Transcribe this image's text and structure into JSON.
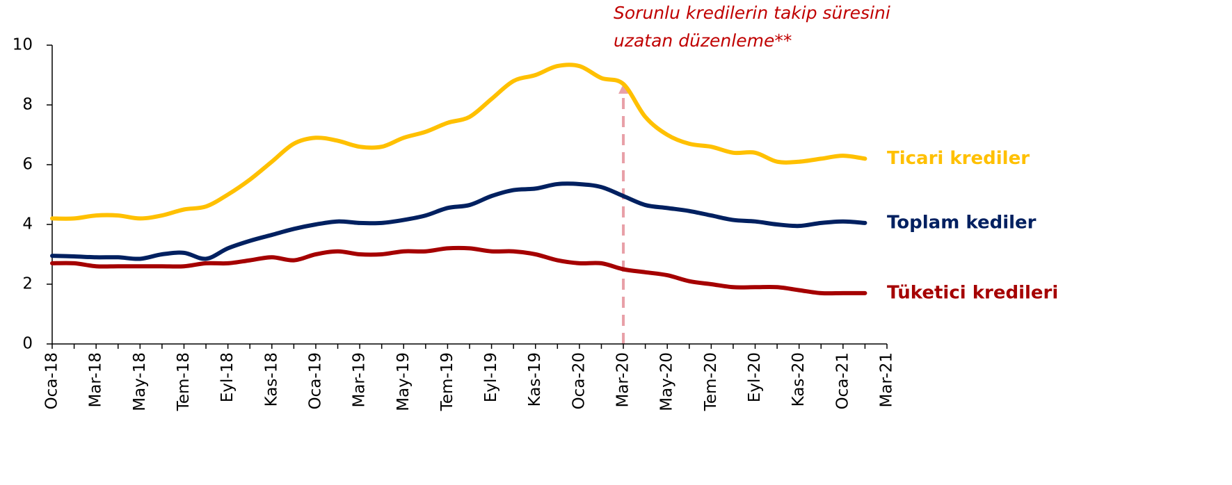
{
  "chart_data": {
    "type": "line",
    "annotation": [
      "Sorunlu kredilerin takip süresini",
      "uzatan düzenleme**"
    ],
    "categories": [
      "Oca-18",
      null,
      "Mar-18",
      null,
      "May-18",
      null,
      "Tem-18",
      null,
      "Eyl-18",
      null,
      "Kas-18",
      null,
      "Oca-19",
      null,
      "Mar-19",
      null,
      "May-19",
      null,
      "Tem-19",
      null,
      "Eyl-19",
      null,
      "Kas-19",
      null,
      "Oca-20",
      null,
      "Mar-20",
      null,
      "May-20",
      null,
      "Tem-20",
      null,
      "Eyl-20",
      null,
      "Kas-20",
      null,
      "Oca-21",
      null,
      "Mar-21"
    ],
    "series": [
      {
        "name": "Ticari krediler",
        "color": "#FFC000",
        "values": [
          4.2,
          4.2,
          4.3,
          4.3,
          4.2,
          4.3,
          4.5,
          4.6,
          5.0,
          5.5,
          6.1,
          6.7,
          6.9,
          6.8,
          6.6,
          6.6,
          6.9,
          7.1,
          7.4,
          7.6,
          8.2,
          8.8,
          9.0,
          9.3,
          9.3,
          8.9,
          8.7,
          7.6,
          7.0,
          6.7,
          6.6,
          6.4,
          6.4,
          6.1,
          6.1,
          6.2,
          6.3,
          6.2,
          null
        ]
      },
      {
        "name": "Toplam kediler",
        "color": "#002060",
        "values": [
          2.95,
          2.93,
          2.9,
          2.9,
          2.85,
          3.0,
          3.05,
          2.85,
          3.2,
          3.45,
          3.65,
          3.85,
          4.0,
          4.1,
          4.05,
          4.05,
          4.15,
          4.3,
          4.55,
          4.65,
          4.95,
          5.15,
          5.2,
          5.35,
          5.35,
          5.25,
          4.95,
          4.65,
          4.55,
          4.45,
          4.3,
          4.15,
          4.1,
          4.0,
          3.95,
          4.05,
          4.1,
          4.05,
          null
        ]
      },
      {
        "name": "Tüketici kredileri",
        "color": "#A50000",
        "values": [
          2.7,
          2.7,
          2.6,
          2.6,
          2.6,
          2.6,
          2.6,
          2.7,
          2.7,
          2.8,
          2.9,
          2.8,
          3.0,
          3.1,
          3.0,
          3.0,
          3.1,
          3.1,
          3.2,
          3.2,
          3.1,
          3.1,
          3.0,
          2.8,
          2.7,
          2.7,
          2.5,
          2.4,
          2.3,
          2.1,
          2.0,
          1.9,
          1.9,
          1.9,
          1.8,
          1.7,
          1.7,
          1.7,
          null
        ]
      }
    ],
    "ylim": [
      0,
      10
    ],
    "yticks": [
      0,
      2,
      4,
      6,
      8,
      10
    ],
    "grid": false
  }
}
